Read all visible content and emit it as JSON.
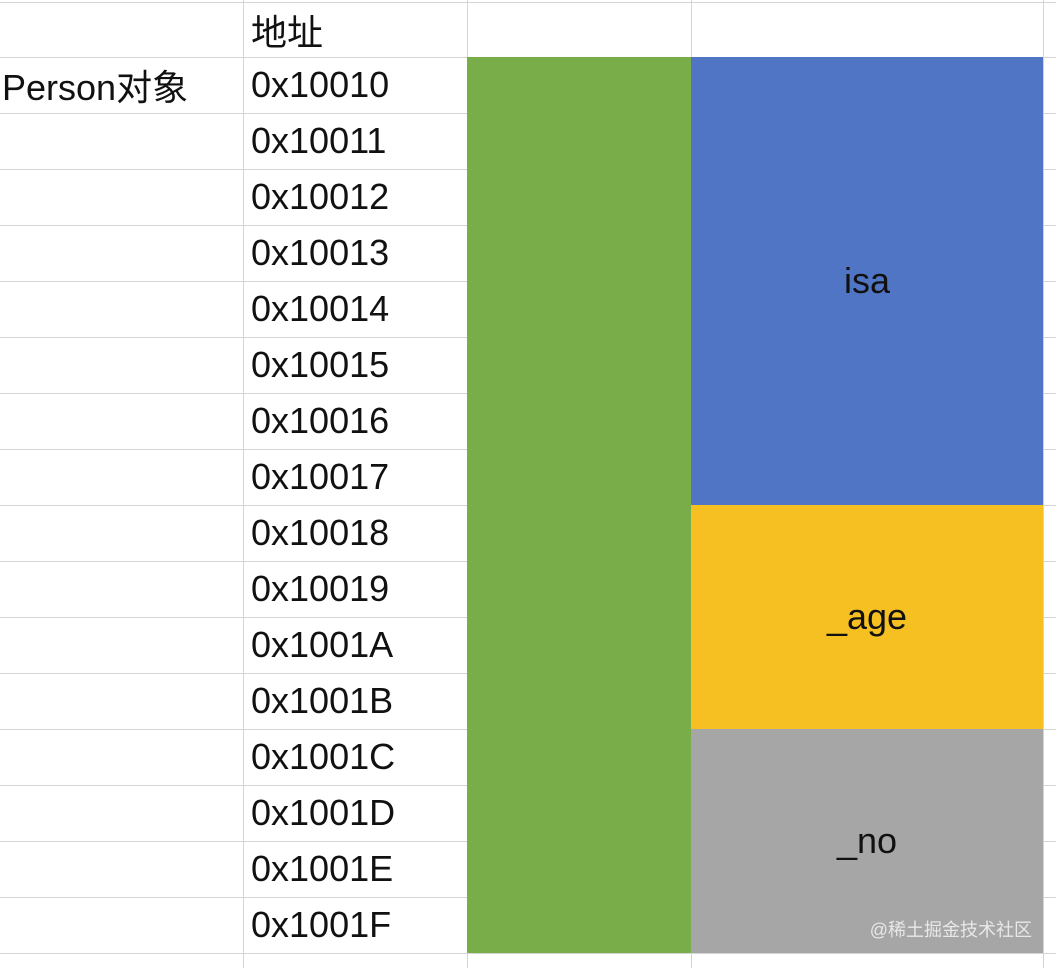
{
  "header": {
    "address_label": "地址"
  },
  "object_label": "Person对象",
  "addresses": [
    "0x10010",
    "0x10011",
    "0x10012",
    "0x10013",
    "0x10014",
    "0x10015",
    "0x10016",
    "0x10017",
    "0x10018",
    "0x10019",
    "0x1001A",
    "0x1001B",
    "0x1001C",
    "0x1001D",
    "0x1001E",
    "0x1001F"
  ],
  "fields": [
    {
      "label": "isa"
    },
    {
      "label": "_age"
    },
    {
      "label": "_no"
    }
  ],
  "watermark": "@稀土掘金技术社区"
}
